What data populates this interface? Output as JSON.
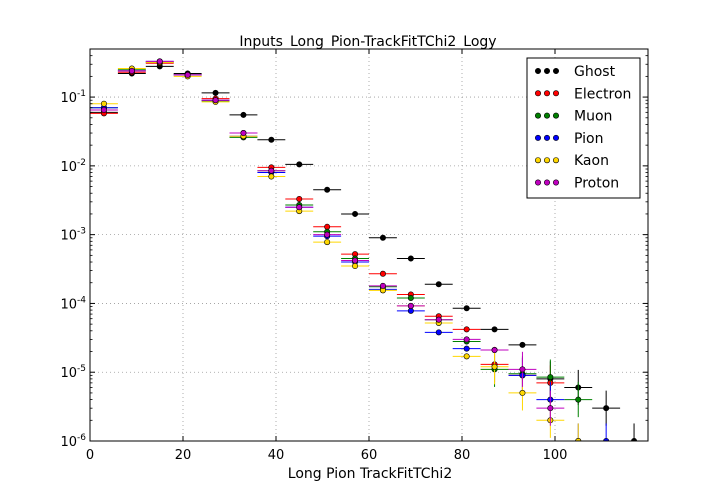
{
  "chart_data": {
    "type": "scatter",
    "title": "Inputs_Long_Pion-TrackFitTChi2_Logy",
    "xlabel": "Long Pion TrackFitTChi2",
    "ylabel": "",
    "xlim": [
      0,
      120
    ],
    "ylim": [
      1e-06,
      0.5
    ],
    "yscale": "log",
    "grid": true,
    "legend_position": "top-right",
    "x_ticks": [
      0,
      20,
      40,
      60,
      80,
      100
    ],
    "x_tick_labels": [
      "0",
      "20",
      "40",
      "60",
      "80",
      "100"
    ],
    "y_ticks": [
      1e-06,
      1e-05,
      0.0001,
      0.001,
      0.01,
      0.1
    ],
    "y_tick_labels": [
      {
        "base": "10",
        "exp": "-6"
      },
      {
        "base": "10",
        "exp": "-5"
      },
      {
        "base": "10",
        "exp": "-4"
      },
      {
        "base": "10",
        "exp": "-3"
      },
      {
        "base": "10",
        "exp": "-2"
      },
      {
        "base": "10",
        "exp": "-1"
      }
    ],
    "bin_width": 6,
    "x": [
      3,
      9,
      15,
      21,
      27,
      33,
      39,
      45,
      51,
      57,
      63,
      69,
      75,
      81,
      87,
      93,
      99,
      105,
      111,
      117
    ],
    "series": [
      {
        "name": "Ghost",
        "color": "#000000",
        "values": [
          0.06,
          0.22,
          0.28,
          0.22,
          0.115,
          0.055,
          0.024,
          0.0105,
          0.0045,
          0.002,
          0.0009,
          0.00045,
          0.00019,
          8.5e-05,
          4.2e-05,
          2.5e-05,
          8e-06,
          6e-06,
          3e-06,
          1e-06
        ]
      },
      {
        "name": "Electron",
        "color": "#ff0000",
        "values": [
          0.058,
          0.23,
          0.31,
          0.21,
          0.095,
          0.03,
          0.0095,
          0.0033,
          0.0013,
          0.00052,
          0.00027,
          0.000135,
          6.5e-05,
          4.2e-05,
          1.3e-05,
          9e-06,
          7e-06,
          null,
          null,
          null
        ]
      },
      {
        "name": "Muon",
        "color": "#008000",
        "values": [
          0.07,
          0.25,
          0.32,
          0.21,
          0.088,
          0.026,
          0.0085,
          0.0027,
          0.0011,
          0.00045,
          0.000175,
          0.00012,
          5.8e-05,
          2.8e-05,
          1.1e-05,
          9.5e-06,
          8.5e-06,
          4e-06,
          null,
          null
        ]
      },
      {
        "name": "Pion",
        "color": "#0000ff",
        "values": [
          0.07,
          0.24,
          0.33,
          0.21,
          0.09,
          0.027,
          0.008,
          0.0025,
          0.00095,
          0.0004,
          0.00016,
          7.8e-05,
          3.8e-05,
          2.2e-05,
          2.1e-05,
          9e-06,
          4e-06,
          1e-06,
          1e-06,
          null
        ]
      },
      {
        "name": "Kaon",
        "color": "#ffd700",
        "values": [
          0.08,
          0.26,
          0.32,
          0.2,
          0.085,
          0.027,
          0.007,
          0.0022,
          0.00078,
          0.00035,
          0.000155,
          9.2e-05,
          5.2e-05,
          1.7e-05,
          1.2e-05,
          5e-06,
          2e-06,
          1e-06,
          null,
          null
        ]
      },
      {
        "name": "Proton",
        "color": "#bf00bf",
        "values": [
          0.065,
          0.24,
          0.33,
          0.21,
          0.09,
          0.03,
          0.0085,
          0.0025,
          0.001,
          0.00042,
          0.00018,
          9.2e-05,
          5.8e-05,
          3e-05,
          2.1e-05,
          1.1e-05,
          3e-06,
          null,
          null,
          null
        ]
      }
    ]
  }
}
